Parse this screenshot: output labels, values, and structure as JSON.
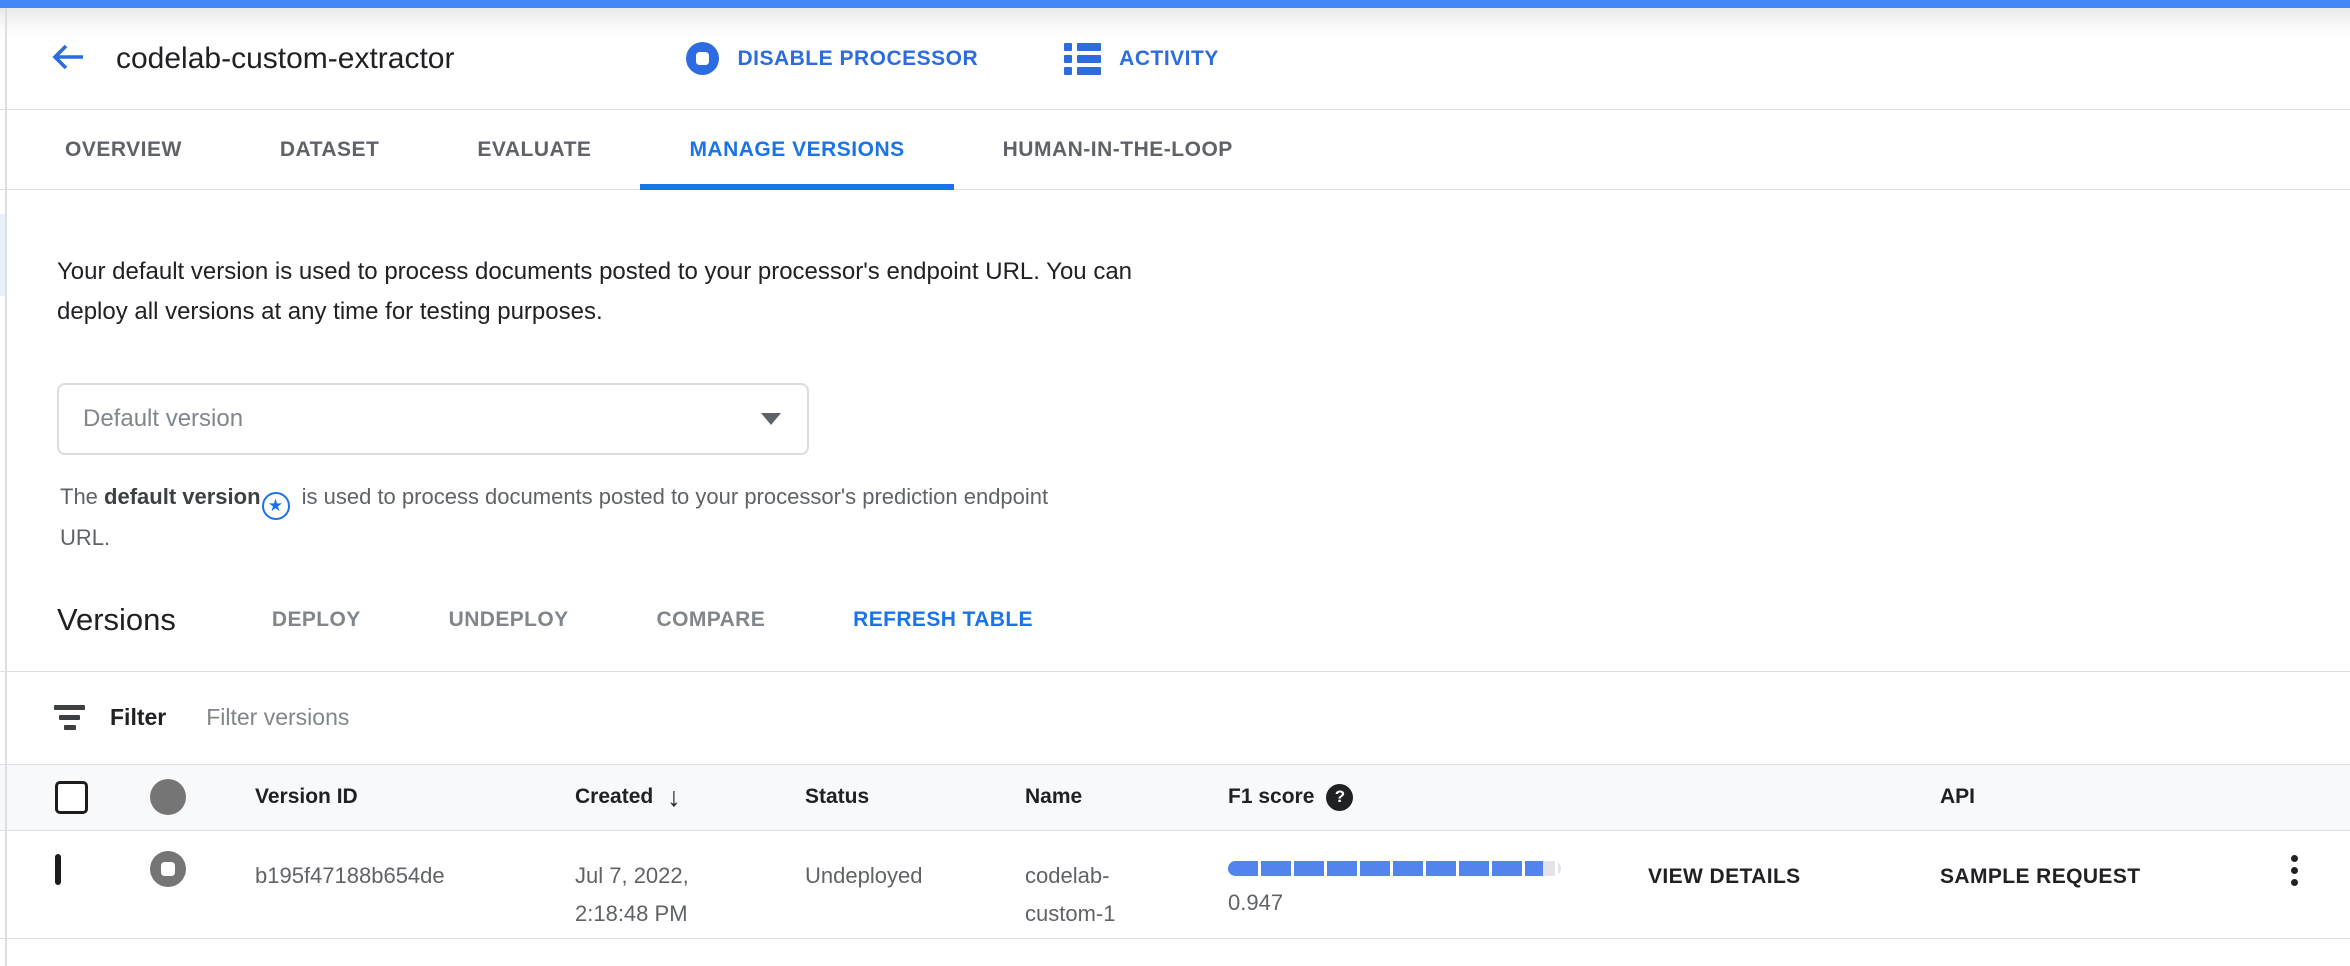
{
  "header": {
    "title": "codelab-custom-extractor",
    "disable_button": "DISABLE PROCESSOR",
    "activity_button": "ACTIVITY"
  },
  "tabs": [
    {
      "label": "OVERVIEW"
    },
    {
      "label": "DATASET"
    },
    {
      "label": "EVALUATE"
    },
    {
      "label": "MANAGE VERSIONS",
      "active": true
    },
    {
      "label": "HUMAN-IN-THE-LOOP"
    }
  ],
  "description": "Your default version is used to process documents posted to your processor's endpoint URL. You can deploy all versions at any time for testing purposes.",
  "default_version": {
    "selected": "Default version",
    "helper_prefix": "The ",
    "helper_bold": "default version",
    "helper_suffix": " is used to process documents posted to your processor's prediction endpoint URL."
  },
  "versions": {
    "heading": "Versions",
    "deploy": "DEPLOY",
    "undeploy": "UNDEPLOY",
    "compare": "COMPARE",
    "refresh": "REFRESH TABLE"
  },
  "filter": {
    "label": "Filter",
    "placeholder": "Filter versions"
  },
  "table": {
    "headers": {
      "version_id": "Version ID",
      "created": "Created",
      "status": "Status",
      "name": "Name",
      "f1": "F1 score",
      "api": "API"
    },
    "rows": [
      {
        "version_id": "b195f47188b654de",
        "created": "Jul 7, 2022, 2:18:48 PM",
        "status": "Undeployed",
        "name": "codelab-custom-1",
        "f1_score": "0.947",
        "f1_percent": 94.7,
        "view_details": "VIEW DETAILS",
        "sample_request": "SAMPLE REQUEST"
      }
    ]
  },
  "icons": {
    "sort_desc": "↓",
    "help": "?",
    "star": "★"
  },
  "colors": {
    "loading_bar": "#4285f4",
    "accent_blue": "#1a73e8",
    "progress_fill": "#5383ec"
  }
}
